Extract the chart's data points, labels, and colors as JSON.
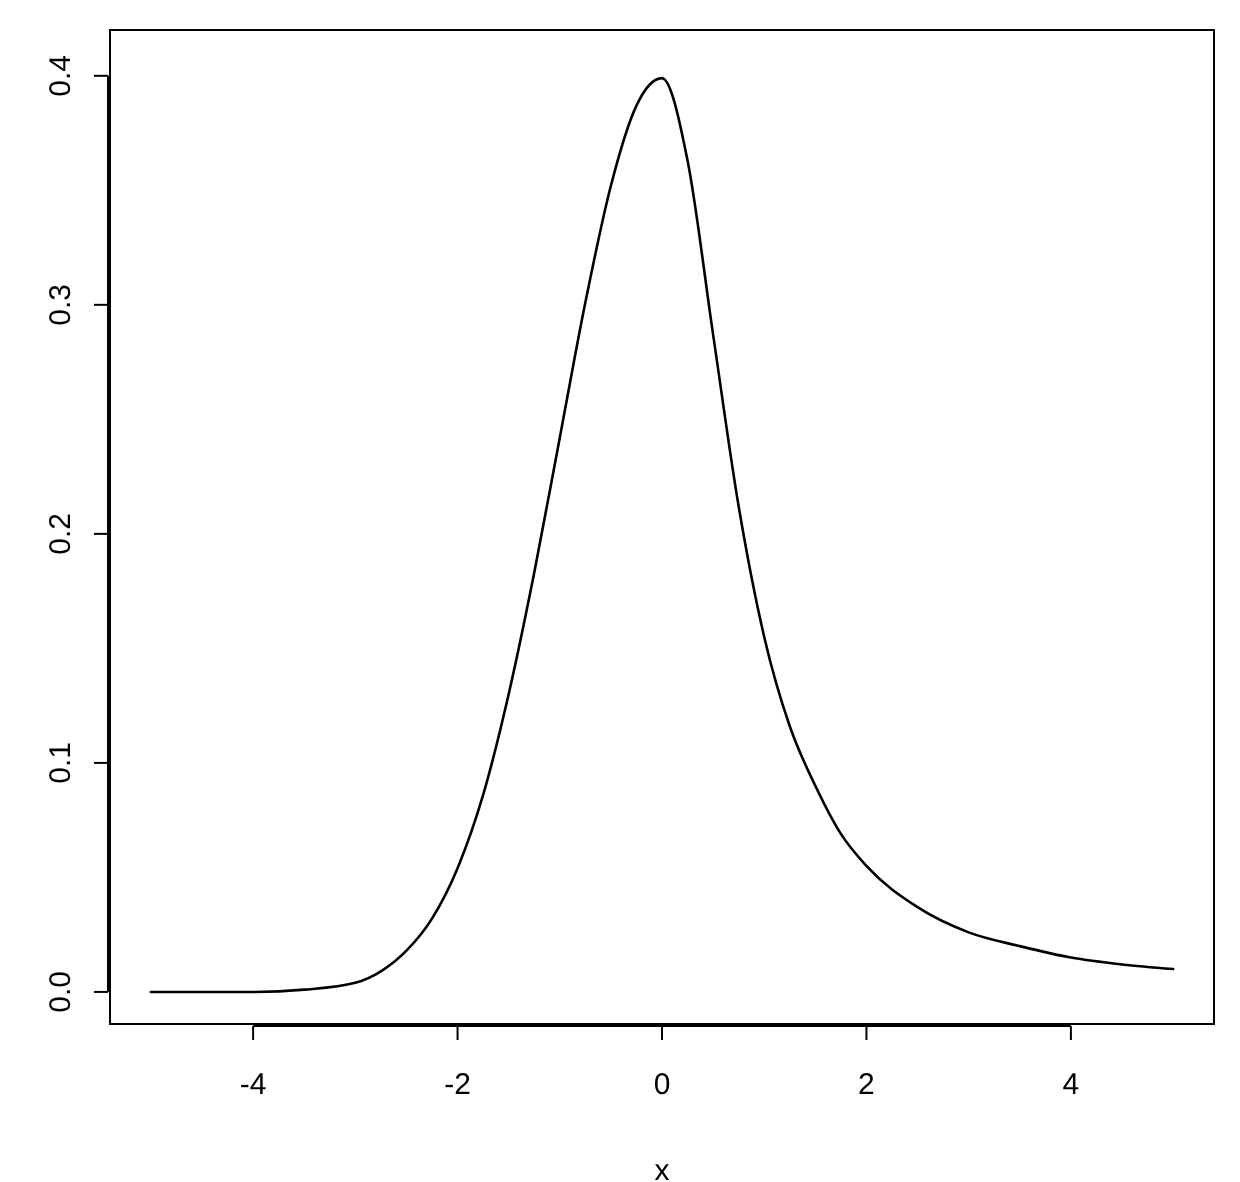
{
  "chart_data": {
    "type": "line",
    "xlabel": "x",
    "x": [
      -5,
      -4.5,
      -4,
      -3.5,
      -3,
      -2.75,
      -2.5,
      -2.25,
      -2,
      -1.75,
      -1.5,
      -1.25,
      -1,
      -0.75,
      -0.5,
      -0.25,
      0,
      0.25,
      0.5,
      0.75,
      1,
      1.25,
      1.5,
      1.75,
      2,
      2.5,
      3,
      3.5,
      4,
      4.5,
      5
    ],
    "series": [
      {
        "color": "#000000",
        "values": [
          0,
          0,
          0,
          0.001,
          0.004,
          0.009,
          0.018,
          0.032,
          0.054,
          0.086,
          0.13,
          0.183,
          0.242,
          0.301,
          0.352,
          0.387,
          0.399,
          0.363,
          0.287,
          0.212,
          0.155,
          0.116,
          0.09,
          0.069,
          0.055,
          0.037,
          0.026,
          0.02,
          0.015,
          0.012,
          0.01
        ]
      }
    ],
    "xlim": [
      -5.4,
      5.4
    ],
    "xticks": [
      -4,
      -2,
      0,
      2,
      4
    ],
    "ylim": [
      -0.014,
      0.42
    ],
    "yticks": [
      {
        "value": 0,
        "label": "0.0"
      },
      {
        "value": 0.1,
        "label": "0.1"
      },
      {
        "value": 0.2,
        "label": "0.2"
      },
      {
        "value": 0.3,
        "label": "0.3"
      },
      {
        "value": 0.4,
        "label": "0.4"
      }
    ],
    "marker": "none",
    "line_style": "solid"
  }
}
